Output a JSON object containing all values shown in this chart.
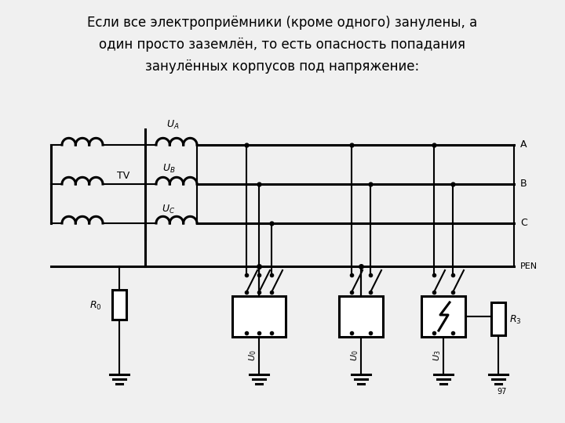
{
  "title_line1": "Если все электроприёмники (кроме одного) занулены, а",
  "title_line2": "один просто заземлён, то есть опасность попадания",
  "title_line3": "занулённых корпусов под напряжение:",
  "bg_color": "#f0f0f0",
  "line_color": "#000000",
  "font_size_title": 12,
  "font_size_label": 9
}
